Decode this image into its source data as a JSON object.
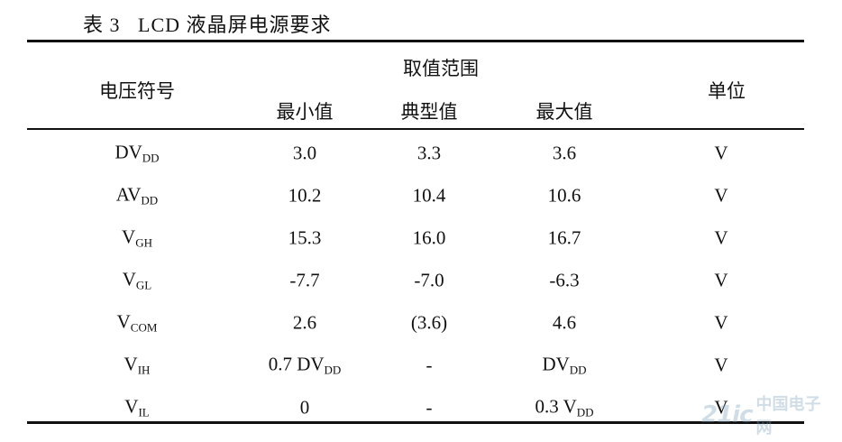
{
  "caption": "表 3   LCD 液晶屏电源要求",
  "header": {
    "symbol": "电压符号",
    "range": "取值范围",
    "min": "最小值",
    "typ": "典型值",
    "max": "最大值",
    "unit": "单位"
  },
  "rows": [
    {
      "symbol": {
        "main": "DV",
        "sub": "DD"
      },
      "min": {
        "main": "3.0",
        "sub": ""
      },
      "typ": {
        "main": "3.3",
        "sub": ""
      },
      "max": {
        "main": "3.6",
        "sub": ""
      },
      "unit": "V"
    },
    {
      "symbol": {
        "main": "AV",
        "sub": "DD"
      },
      "min": {
        "main": "10.2",
        "sub": ""
      },
      "typ": {
        "main": "10.4",
        "sub": ""
      },
      "max": {
        "main": "10.6",
        "sub": ""
      },
      "unit": "V"
    },
    {
      "symbol": {
        "main": "V",
        "sub": "GH"
      },
      "min": {
        "main": "15.3",
        "sub": ""
      },
      "typ": {
        "main": "16.0",
        "sub": ""
      },
      "max": {
        "main": "16.7",
        "sub": ""
      },
      "unit": "V"
    },
    {
      "symbol": {
        "main": "V",
        "sub": "GL"
      },
      "min": {
        "main": "-7.7",
        "sub": ""
      },
      "typ": {
        "main": "-7.0",
        "sub": ""
      },
      "max": {
        "main": "-6.3",
        "sub": ""
      },
      "unit": "V"
    },
    {
      "symbol": {
        "main": "V",
        "sub": "COM"
      },
      "min": {
        "main": "2.6",
        "sub": ""
      },
      "typ": {
        "main": "(3.6)",
        "sub": ""
      },
      "max": {
        "main": "4.6",
        "sub": ""
      },
      "unit": "V"
    },
    {
      "symbol": {
        "main": "V",
        "sub": "IH"
      },
      "min": {
        "main": "0.7 DV",
        "sub": "DD"
      },
      "typ": {
        "main": "-",
        "sub": ""
      },
      "max": {
        "main": "DV",
        "sub": "DD"
      },
      "unit": "V"
    },
    {
      "symbol": {
        "main": "V",
        "sub": "IL"
      },
      "min": {
        "main": "0",
        "sub": ""
      },
      "typ": {
        "main": "-",
        "sub": ""
      },
      "max": {
        "main": "0.3 V",
        "sub": "DD"
      },
      "unit": "V"
    }
  ],
  "watermark": {
    "mark": "21ic",
    "text": "中国电子网"
  }
}
